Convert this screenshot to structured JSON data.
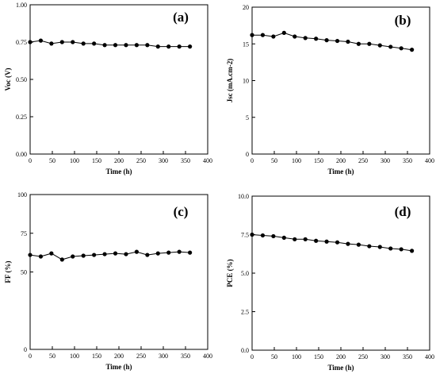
{
  "chart_data": [
    {
      "type": "line",
      "panel_label": "(a)",
      "xlabel": "Time (h)",
      "ylabel": "Voc (V)",
      "xlim": [
        0,
        400
      ],
      "ylim": [
        0,
        1
      ],
      "xticks": [
        "0",
        "50",
        "100",
        "150",
        "200",
        "250",
        "300",
        "350",
        "400"
      ],
      "yticks": [
        "0.00",
        "0.25",
        "0.50",
        "0.75",
        "1.00"
      ],
      "grid": false,
      "series": [
        {
          "x": [
            0,
            24,
            48,
            72,
            96,
            120,
            144,
            168,
            192,
            216,
            240,
            264,
            288,
            312,
            336,
            360
          ],
          "y": [
            0.75,
            0.76,
            0.74,
            0.75,
            0.75,
            0.74,
            0.74,
            0.73,
            0.73,
            0.73,
            0.73,
            0.73,
            0.72,
            0.72,
            0.72,
            0.72
          ]
        }
      ]
    },
    {
      "type": "line",
      "panel_label": "(b)",
      "xlabel": "Time (h)",
      "ylabel": "Jsc (mA.cm-2)",
      "xlim": [
        0,
        400
      ],
      "ylim": [
        0,
        20
      ],
      "xticks": [
        "0",
        "50",
        "100",
        "150",
        "200",
        "250",
        "300",
        "350",
        "400"
      ],
      "yticks": [
        "0",
        "5",
        "10",
        "15",
        "20"
      ],
      "grid": false,
      "series": [
        {
          "x": [
            0,
            24,
            48,
            72,
            96,
            120,
            144,
            168,
            192,
            216,
            240,
            264,
            288,
            312,
            336,
            360
          ],
          "y": [
            16.2,
            16.2,
            16.0,
            16.5,
            16.0,
            15.8,
            15.7,
            15.5,
            15.4,
            15.3,
            15.0,
            15.0,
            14.8,
            14.6,
            14.4,
            14.2
          ]
        }
      ]
    },
    {
      "type": "line",
      "panel_label": "(c)",
      "xlabel": "Time (h)",
      "ylabel": "FF (%)",
      "xlim": [
        0,
        400
      ],
      "ylim": [
        0,
        100
      ],
      "xticks": [
        "0",
        "50",
        "100",
        "150",
        "200",
        "250",
        "300",
        "350",
        "400"
      ],
      "yticks": [
        "0",
        "50",
        "75",
        "100"
      ],
      "ytick_values": [
        0,
        50,
        75,
        100
      ],
      "grid": false,
      "series": [
        {
          "x": [
            0,
            24,
            48,
            72,
            96,
            120,
            144,
            168,
            192,
            216,
            240,
            264,
            288,
            312,
            336,
            360
          ],
          "y": [
            61,
            60,
            62,
            58,
            60,
            60.5,
            61,
            61.5,
            62,
            61.5,
            63,
            61,
            62,
            62.5,
            63,
            62.5
          ]
        }
      ]
    },
    {
      "type": "line",
      "panel_label": "(d)",
      "xlabel": "Time (h)",
      "ylabel": "PCE (%)",
      "xlim": [
        0,
        400
      ],
      "ylim": [
        0,
        10
      ],
      "xticks": [
        "0",
        "50",
        "100",
        "150",
        "200",
        "250",
        "300",
        "350",
        "400"
      ],
      "yticks": [
        "0.0",
        "2.5",
        "5.0",
        "7.5",
        "10.0"
      ],
      "grid": false,
      "series": [
        {
          "x": [
            0,
            24,
            48,
            72,
            96,
            120,
            144,
            168,
            192,
            216,
            240,
            264,
            288,
            312,
            336,
            360
          ],
          "y": [
            7.5,
            7.45,
            7.4,
            7.3,
            7.2,
            7.2,
            7.1,
            7.05,
            7.0,
            6.9,
            6.85,
            6.75,
            6.7,
            6.6,
            6.55,
            6.45
          ]
        }
      ]
    }
  ]
}
